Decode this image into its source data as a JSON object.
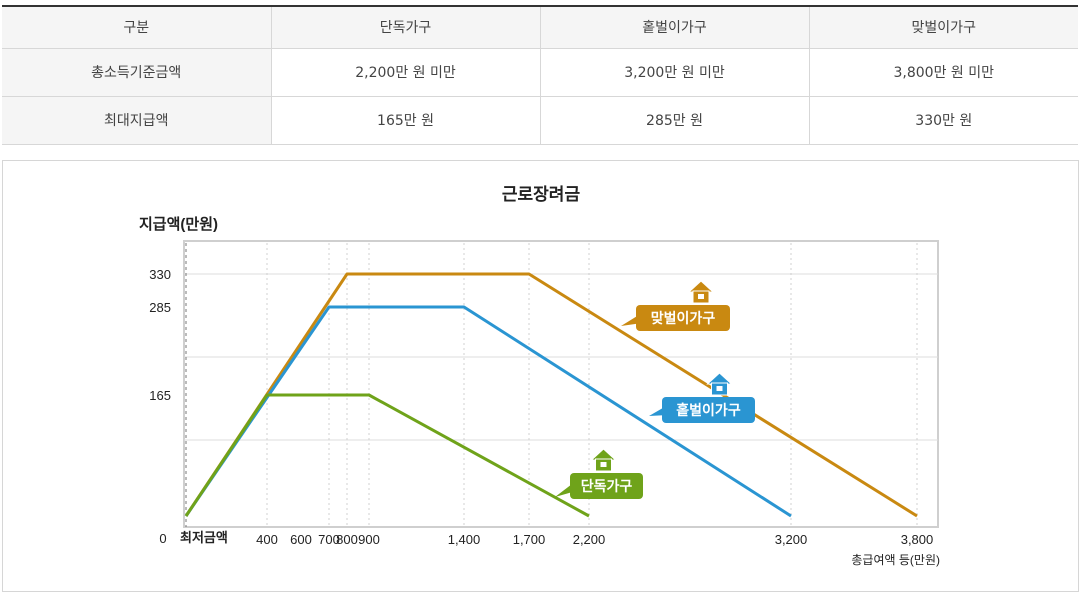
{
  "table": {
    "headers": [
      "구분",
      "단독가구",
      "홑벌이가구",
      "맞벌이가구"
    ],
    "rows": [
      [
        "총소득기준금액",
        "2,200만 원 미만",
        "3,200만 원 미만",
        "3,800만 원 미만"
      ],
      [
        "최대지급액",
        "165만 원",
        "285만 원",
        "330만 원"
      ]
    ]
  },
  "chart_data": {
    "type": "line",
    "title": "근로장려금",
    "ylabel": "지급액(만원)",
    "xlabel": "총급여액 등(만원)",
    "origin_label": "0",
    "x_min_label": "최저금액",
    "x_ticks": [
      "400",
      "600",
      "700",
      "800",
      "900",
      "1,400",
      "1,700",
      "2,200",
      "3,200",
      "3,800"
    ],
    "y_ticks": [
      "165",
      "285",
      "330"
    ],
    "series": [
      {
        "name": "단독가구",
        "color": "#6fa31a",
        "label_color": "#6fa31a",
        "points": [
          [
            0,
            0
          ],
          [
            400,
            165
          ],
          [
            900,
            165
          ],
          [
            2200,
            0
          ]
        ]
      },
      {
        "name": "홑벌이가구",
        "color": "#2a95d2",
        "label_color": "#2a95d2",
        "points": [
          [
            0,
            0
          ],
          [
            700,
            285
          ],
          [
            1400,
            285
          ],
          [
            3200,
            0
          ]
        ]
      },
      {
        "name": "맞벌이가구",
        "color": "#c98911",
        "label_color": "#c98911",
        "points": [
          [
            0,
            0
          ],
          [
            800,
            330
          ],
          [
            1700,
            330
          ],
          [
            3800,
            0
          ]
        ]
      }
    ],
    "grid": true,
    "icon": "house-icon"
  }
}
